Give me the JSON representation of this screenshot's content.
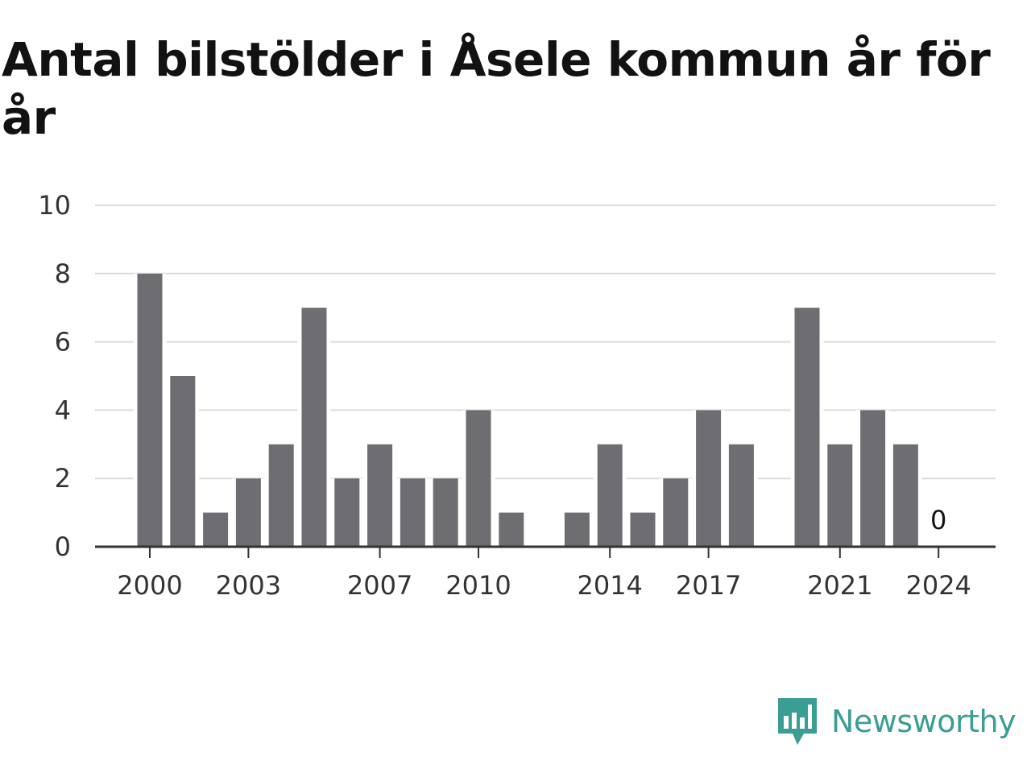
{
  "title": "Antal bilstölder i Åsele kommun år för år",
  "brand": {
    "name": "Newsworthy",
    "icon": "newsworthy-logo-icon",
    "color": "#3a9e94"
  },
  "chart_data": {
    "type": "bar",
    "categories": [
      "2000",
      "2001",
      "2002",
      "2003",
      "2004",
      "2005",
      "2006",
      "2007",
      "2008",
      "2009",
      "2010",
      "2011",
      "2012",
      "2013",
      "2014",
      "2015",
      "2016",
      "2017",
      "2018",
      "2019",
      "2020",
      "2021",
      "2022",
      "2023",
      "2024"
    ],
    "values": [
      8,
      5,
      1,
      2,
      3,
      7,
      2,
      3,
      2,
      2,
      4,
      1,
      null,
      1,
      3,
      1,
      2,
      4,
      3,
      null,
      7,
      3,
      4,
      3,
      0
    ],
    "x_tick_labels": [
      "2000",
      "2003",
      "2007",
      "2010",
      "2014",
      "2017",
      "2021",
      "2024"
    ],
    "y_ticks": [
      0,
      2,
      4,
      6,
      8,
      10
    ],
    "ylim": [
      0,
      10
    ],
    "data_labels": [
      {
        "category": "2024",
        "text": "0"
      }
    ],
    "bar_color": "#6e6d72",
    "grid": true,
    "xlabel": "",
    "ylabel": ""
  }
}
